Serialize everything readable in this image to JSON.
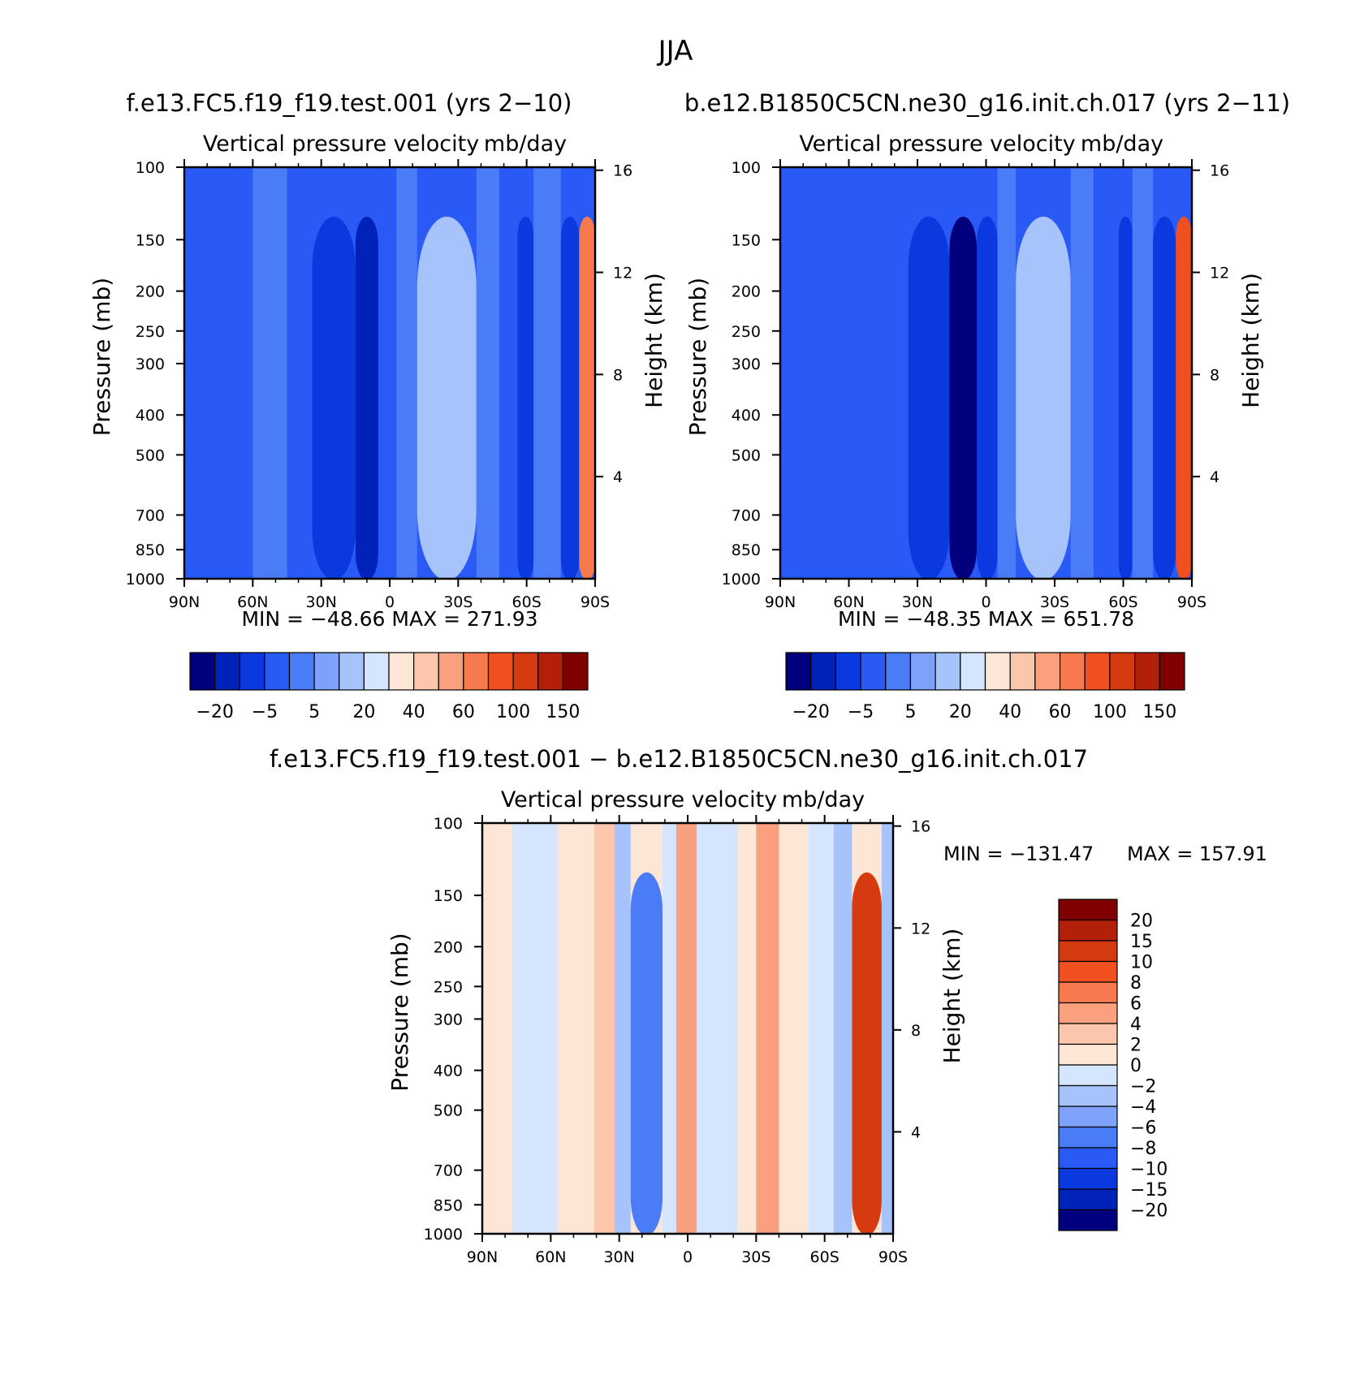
{
  "figure": {
    "title": "JJA",
    "title_left": "f.e13.FC5.f19_f19.test.001 (yrs 2−10)",
    "title_right": "b.e12.B1850C5CN.ne30_g16.init.ch.017 (yrs 2−11)",
    "title_diff": "f.e13.FC5.f19_f19.test.001 − b.e12.B1850C5CN.ne30_g16.init.ch.017"
  },
  "chart_data": [
    {
      "type": "heatmap",
      "id": "panel-left",
      "title": "Vertical pressure velocity",
      "units": "mb/day",
      "xlabel": "",
      "ylabel": "Pressure (mb)",
      "y2label": "Height (km)",
      "x_ticks": [
        "90N",
        "60N",
        "30N",
        "0",
        "30S",
        "60S",
        "90S"
      ],
      "y_ticks": [
        100,
        150,
        200,
        250,
        300,
        400,
        500,
        700,
        850,
        1000
      ],
      "y2_ticks": [
        16,
        12,
        8,
        4
      ],
      "min_label": "MIN = −48.66",
      "max_label": "MAX = 271.93",
      "colorbar_labels": [
        "−20",
        "−5",
        "5",
        "20",
        "40",
        "60",
        "100",
        "150"
      ],
      "colorbar_colors": [
        "#00007f",
        "#0022b8",
        "#0a39e0",
        "#2a5af5",
        "#4b7cf8",
        "#7ea2fa",
        "#a7c3fc",
        "#d4e5fd",
        "#fde6d6",
        "#fcc6ac",
        "#f9a07e",
        "#f67a4e",
        "#f04f1f",
        "#d63a10",
        "#b3200a",
        "#800000"
      ],
      "bands": [
        {
          "lat_start": -90,
          "lat_end": -71,
          "value": -1
        },
        {
          "lat_start": -71,
          "lat_end": -60,
          "value": -4
        },
        {
          "lat_start": -60,
          "lat_end": -45,
          "value": 0
        },
        {
          "lat_start": -45,
          "lat_end": -34,
          "value": -3
        },
        {
          "lat_start": -34,
          "lat_end": -15,
          "value": -6
        },
        {
          "lat_start": -15,
          "lat_end": -5,
          "value": -20
        },
        {
          "lat_start": -5,
          "lat_end": 3,
          "value": -5
        },
        {
          "lat_start": 3,
          "lat_end": 12,
          "value": 0
        },
        {
          "lat_start": 12,
          "lat_end": 38,
          "value": 15
        },
        {
          "lat_start": 38,
          "lat_end": 48,
          "value": 0
        },
        {
          "lat_start": 48,
          "lat_end": 56,
          "value": -4
        },
        {
          "lat_start": 56,
          "lat_end": 63,
          "value": -10
        },
        {
          "lat_start": 63,
          "lat_end": 75,
          "value": 1
        },
        {
          "lat_start": 75,
          "lat_end": 83,
          "value": -8
        },
        {
          "lat_start": 83,
          "lat_end": 90,
          "value": 70
        }
      ]
    },
    {
      "type": "heatmap",
      "id": "panel-right",
      "title": "Vertical pressure velocity",
      "units": "mb/day",
      "xlabel": "",
      "ylabel": "Pressure (mb)",
      "y2label": "Height (km)",
      "x_ticks": [
        "90N",
        "60N",
        "30N",
        "0",
        "30S",
        "60S",
        "90S"
      ],
      "y_ticks": [
        100,
        150,
        200,
        250,
        300,
        400,
        500,
        700,
        850,
        1000
      ],
      "y2_ticks": [
        16,
        12,
        8,
        4
      ],
      "min_label": "MIN = −48.35",
      "max_label": "MAX = 651.78",
      "colorbar_labels": [
        "−20",
        "−5",
        "5",
        "20",
        "40",
        "60",
        "100",
        "150"
      ],
      "colorbar_colors": [
        "#00007f",
        "#0022b8",
        "#0a39e0",
        "#2a5af5",
        "#4b7cf8",
        "#7ea2fa",
        "#a7c3fc",
        "#d4e5fd",
        "#fde6d6",
        "#fcc6ac",
        "#f9a07e",
        "#f67a4e",
        "#f04f1f",
        "#d63a10",
        "#b3200a",
        "#800000"
      ],
      "bands": [
        {
          "lat_start": -90,
          "lat_end": -72,
          "value": -3
        },
        {
          "lat_start": -72,
          "lat_end": -60,
          "value": -1
        },
        {
          "lat_start": -60,
          "lat_end": -45,
          "value": -2
        },
        {
          "lat_start": -45,
          "lat_end": -34,
          "value": -3
        },
        {
          "lat_start": -34,
          "lat_end": -16,
          "value": -6
        },
        {
          "lat_start": -16,
          "lat_end": -4,
          "value": -22
        },
        {
          "lat_start": -4,
          "lat_end": 5,
          "value": -6
        },
        {
          "lat_start": 5,
          "lat_end": 13,
          "value": 1
        },
        {
          "lat_start": 13,
          "lat_end": 37,
          "value": 14
        },
        {
          "lat_start": 37,
          "lat_end": 47,
          "value": 0
        },
        {
          "lat_start": 47,
          "lat_end": 58,
          "value": -4
        },
        {
          "lat_start": 58,
          "lat_end": 64,
          "value": -8
        },
        {
          "lat_start": 64,
          "lat_end": 73,
          "value": 2
        },
        {
          "lat_start": 73,
          "lat_end": 83,
          "value": -10
        },
        {
          "lat_start": 83,
          "lat_end": 90,
          "value": 90
        }
      ]
    },
    {
      "type": "heatmap",
      "id": "panel-diff",
      "title": "Vertical pressure velocity",
      "units": "mb/day",
      "xlabel": "",
      "ylabel": "Pressure (mb)",
      "y2label": "Height (km)",
      "x_ticks": [
        "90N",
        "60N",
        "30N",
        "0",
        "30S",
        "60S",
        "90S"
      ],
      "y_ticks": [
        100,
        150,
        200,
        250,
        300,
        400,
        500,
        700,
        850,
        1000
      ],
      "y2_ticks": [
        16,
        12,
        8,
        4
      ],
      "min_label": "MIN = −131.47",
      "max_label": "MAX = 157.91",
      "colorbar_labels": [
        "20",
        "15",
        "10",
        "8",
        "6",
        "4",
        "2",
        "0",
        "−2",
        "−4",
        "−6",
        "−8",
        "−10",
        "−15",
        "−20"
      ],
      "colorbar_colors": [
        "#800000",
        "#b3200a",
        "#d63a10",
        "#f04f1f",
        "#f67a4e",
        "#f9a07e",
        "#fcc6ac",
        "#fde6d6",
        "#d4e5fd",
        "#a7c3fc",
        "#7ea2fa",
        "#4b7cf8",
        "#2a5af5",
        "#0a39e0",
        "#0022b8",
        "#00007f"
      ],
      "bands": [
        {
          "lat_start": -90,
          "lat_end": -77,
          "value": 1
        },
        {
          "lat_start": -77,
          "lat_end": -57,
          "value": -1
        },
        {
          "lat_start": -57,
          "lat_end": -41,
          "value": 1
        },
        {
          "lat_start": -41,
          "lat_end": -32,
          "value": 3
        },
        {
          "lat_start": -32,
          "lat_end": -25,
          "value": -3
        },
        {
          "lat_start": -25,
          "lat_end": -11,
          "value": -7
        },
        {
          "lat_start": -11,
          "lat_end": -5,
          "value": -1
        },
        {
          "lat_start": -5,
          "lat_end": 4,
          "value": 5
        },
        {
          "lat_start": 4,
          "lat_end": 14,
          "value": -1
        },
        {
          "lat_start": 14,
          "lat_end": 22,
          "value": -2
        },
        {
          "lat_start": 22,
          "lat_end": 30,
          "value": 1
        },
        {
          "lat_start": 30,
          "lat_end": 40,
          "value": 4
        },
        {
          "lat_start": 40,
          "lat_end": 53,
          "value": 1
        },
        {
          "lat_start": 53,
          "lat_end": 64,
          "value": -1
        },
        {
          "lat_start": 64,
          "lat_end": 72,
          "value": -3
        },
        {
          "lat_start": 72,
          "lat_end": 85,
          "value": 12
        },
        {
          "lat_start": 85,
          "lat_end": 90,
          "value": -3
        }
      ]
    }
  ]
}
